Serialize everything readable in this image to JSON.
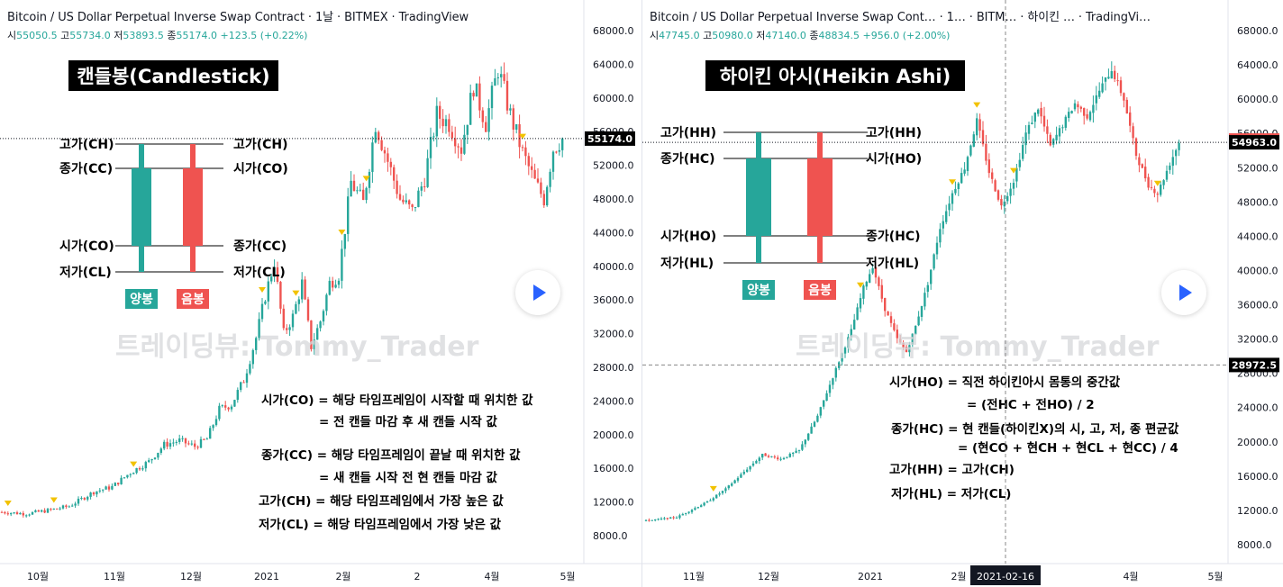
{
  "colors": {
    "up": "#26a69a",
    "down": "#ef5350",
    "text": "#131722",
    "grid": "#e0e3eb",
    "marker": "#f2c200"
  },
  "left": {
    "header": "Bitcoin / US Dollar Perpetual Inverse Swap Contract · 1날 · BITMEX · TradingView",
    "ohlc": {
      "o_label": "시",
      "o": "55050.5",
      "h_label": "고",
      "h": "55734.0",
      "l_label": "저",
      "l": "53893.5",
      "c_label": "종",
      "c": "55174.0",
      "chg": "+123.5 (+0.22%)"
    },
    "title": "캔들봉(Candlestick)",
    "price_tag": "55174.0",
    "legend_labels": {
      "tl": "고가(CH)",
      "tr": "고가(CH)",
      "ml": "종가(CC)",
      "mr": "시가(CO)",
      "bl": "시가(CO)",
      "br": "종가(CC)",
      "ll": "저가(CL)",
      "lr": "저가(CL)"
    },
    "badges": {
      "up": "양봉",
      "down": "음봉"
    },
    "watermark": "트레이딩뷰: Tommy_Trader",
    "notes": [
      "시가(CO) = 해당 타임프레임이 시작할 때 위치한 값",
      "= 전 캔들 마감 후 새 캔들 시작 값",
      "종가(CC) = 해당 타임프레임이 끝날 때 위치한 값",
      "= 새 캔들 시작 전 현 캔들 마감 값",
      "고가(CH) = 해당 타임프레임에서 가장 높은 값",
      "저가(CL) = 해당 타임프레임에서 가장 낮은 값"
    ]
  },
  "right": {
    "header": "Bitcoin / US Dollar Perpetual Inverse Swap Cont… · 1… · BITM… · 하이킨 … · TradingVi…",
    "ohlc": {
      "o_label": "시",
      "o": "47745.0",
      "h_label": "고",
      "h": "50980.0",
      "l_label": "저",
      "l": "47140.0",
      "c_label": "종",
      "c": "48834.5",
      "chg": "+956.0 (+2.00%)"
    },
    "title": "하이킨 아시(Heikin Ashi)",
    "price_tags": [
      "55174.0",
      "54963.0",
      "28972.5"
    ],
    "crosshair_date": "2021-02-16",
    "legend_labels": {
      "tl": "고가(HH)",
      "tr": "고가(HH)",
      "ml": "종가(HC)",
      "mr": "시가(HO)",
      "bl": "시가(HO)",
      "br": "종가(HC)",
      "ll": "저가(HL)",
      "lr": "저가(HL)"
    },
    "badges": {
      "up": "양봉",
      "down": "음봉"
    },
    "watermark": "트레이딩뷰: Tommy_Trader",
    "notes": [
      "시가(HO) = 직전 하이킨아시 몸통의 중간값",
      "= (전HC + 전HO) / 2",
      "종가(HC) = 현 캔들(하이킨X)의 시, 고, 저, 종 편균값",
      "= (현CO + 현CH + 현CL + 현CC) / 4",
      "고가(HH) = 고가(CH)",
      "저가(HL) = 저가(CL)"
    ]
  },
  "chart_data": [
    {
      "type": "candlestick",
      "name": "Candlestick",
      "ylim": [
        6000,
        70000
      ],
      "yticks": [
        8000,
        12000,
        16000,
        20000,
        24000,
        28000,
        32000,
        36000,
        40000,
        44000,
        48000,
        52000,
        56000,
        60000,
        64000,
        68000
      ],
      "xticks": [
        "10월",
        "11월",
        "12월",
        "2021",
        "2월",
        "2",
        "4월",
        "5월"
      ],
      "last_price": 55174.0,
      "path": [
        [
          0,
          10800
        ],
        [
          8,
          10600
        ],
        [
          15,
          11000
        ],
        [
          22,
          11500
        ],
        [
          30,
          13200
        ],
        [
          36,
          13800
        ],
        [
          42,
          15500
        ],
        [
          48,
          16800
        ],
        [
          53,
          18800
        ],
        [
          58,
          19300
        ],
        [
          63,
          18600
        ],
        [
          67,
          19500
        ],
        [
          71,
          23000
        ],
        [
          75,
          23600
        ],
        [
          79,
          26500
        ],
        [
          83,
          31500
        ],
        [
          86,
          36500
        ],
        [
          89,
          40500
        ],
        [
          92,
          32000
        ],
        [
          95,
          34000
        ],
        [
          98,
          38000
        ],
        [
          101,
          30500
        ],
        [
          104,
          33500
        ],
        [
          107,
          38000
        ],
        [
          110,
          39000
        ],
        [
          114,
          50000
        ],
        [
          118,
          47500
        ],
        [
          122,
          57000
        ],
        [
          126,
          52500
        ],
        [
          130,
          48000
        ],
        [
          134,
          46500
        ],
        [
          138,
          50500
        ],
        [
          142,
          58000
        ],
        [
          146,
          57000
        ],
        [
          150,
          54000
        ],
        [
          154,
          61500
        ],
        [
          158,
          57000
        ],
        [
          162,
          63500
        ],
        [
          166,
          58000
        ],
        [
          170,
          53500
        ],
        [
          174,
          50000
        ],
        [
          177,
          48000
        ],
        [
          180,
          54000
        ],
        [
          183,
          55174
        ]
      ]
    },
    {
      "type": "heikin-ashi",
      "name": "Heikin Ashi",
      "ylim": [
        6000,
        70000
      ],
      "yticks": [
        8000,
        12000,
        16000,
        20000,
        24000,
        28000,
        32000,
        36000,
        40000,
        44000,
        48000,
        52000,
        56000,
        60000,
        64000,
        68000
      ],
      "xticks": [
        "11월",
        "12월",
        "2021",
        "2월",
        "4월",
        "5월"
      ],
      "last_price": 54963.0,
      "path": [
        [
          0,
          10800
        ],
        [
          10,
          11200
        ],
        [
          20,
          13000
        ],
        [
          26,
          14500
        ],
        [
          32,
          16500
        ],
        [
          38,
          18500
        ],
        [
          44,
          18000
        ],
        [
          50,
          19000
        ],
        [
          56,
          23000
        ],
        [
          62,
          28500
        ],
        [
          67,
          33000
        ],
        [
          71,
          38000
        ],
        [
          74,
          40500
        ],
        [
          78,
          35500
        ],
        [
          82,
          32000
        ],
        [
          85,
          30500
        ],
        [
          88,
          33500
        ],
        [
          92,
          38500
        ],
        [
          96,
          45000
        ],
        [
          100,
          49000
        ],
        [
          104,
          52000
        ],
        [
          108,
          57500
        ],
        [
          112,
          51500
        ],
        [
          116,
          47500
        ],
        [
          120,
          50500
        ],
        [
          124,
          56000
        ],
        [
          128,
          59000
        ],
        [
          132,
          54500
        ],
        [
          136,
          57000
        ],
        [
          140,
          59500
        ],
        [
          144,
          58000
        ],
        [
          148,
          61000
        ],
        [
          152,
          63500
        ],
        [
          156,
          60000
        ],
        [
          160,
          53500
        ],
        [
          164,
          50000
        ],
        [
          167,
          49000
        ],
        [
          171,
          52500
        ],
        [
          174,
          54963
        ]
      ]
    }
  ]
}
